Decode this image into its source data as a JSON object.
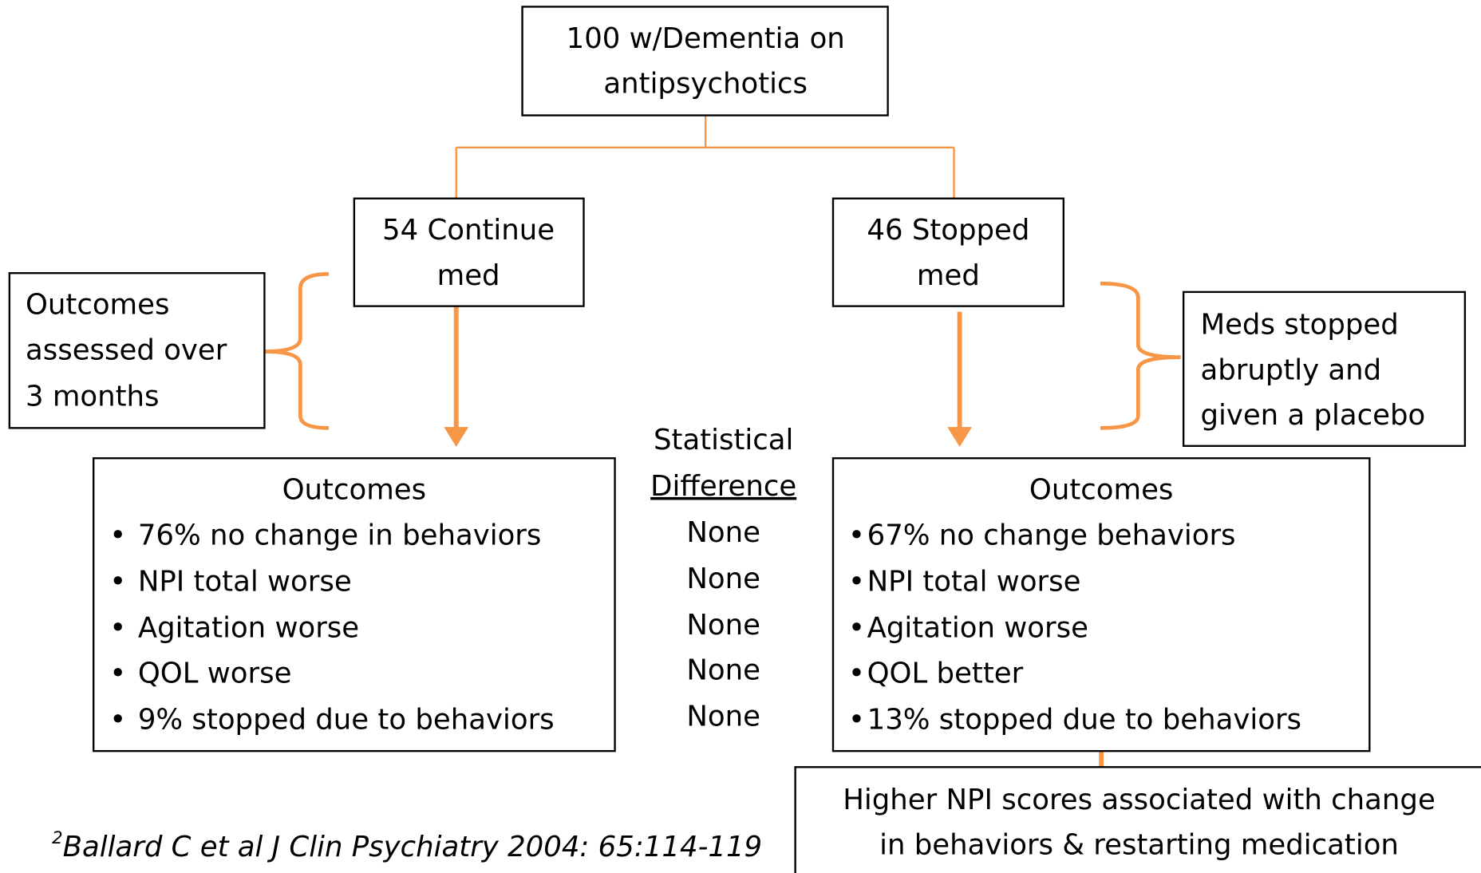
{
  "root": {
    "lines": [
      "100 w/Dementia on",
      "antipsychotics"
    ]
  },
  "continue_group": {
    "lines": [
      "54 Continue",
      "med"
    ]
  },
  "stopped_group": {
    "lines": [
      "46 Stopped",
      "med"
    ]
  },
  "left_note": {
    "lines": [
      "Outcomes",
      "assessed over",
      "3  months"
    ]
  },
  "right_note": {
    "lines": [
      "Meds stopped",
      "abruptly and",
      "given a placebo"
    ]
  },
  "left_outcomes": {
    "title": "Outcomes",
    "items": [
      "76% no change in behaviors",
      "NPI total worse",
      "Agitation worse",
      "QOL worse",
      "9% stopped due to behaviors"
    ]
  },
  "statistical_difference": {
    "header": [
      "Statistical",
      "Difference"
    ],
    "values": [
      "None",
      "None",
      "None",
      "None",
      "None"
    ]
  },
  "right_outcomes": {
    "title": "Outcomes",
    "items": [
      "67% no change  behaviors",
      "NPI total worse",
      "Agitation worse",
      "QOL better",
      "13% stopped due to behaviors"
    ]
  },
  "bottom_note": {
    "lines": [
      "Higher NPI scores associated with change",
      "in behaviors & restarting medication"
    ]
  },
  "citation": {
    "superscript": "2",
    "text": "Ballard C et al J Clin Psychiatry 2004: 65:114-119"
  }
}
